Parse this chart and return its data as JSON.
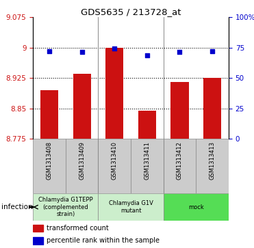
{
  "title": "GDS5635 / 213728_at",
  "samples": [
    "GSM1313408",
    "GSM1313409",
    "GSM1313410",
    "GSM1313411",
    "GSM1313412",
    "GSM1313413"
  ],
  "bar_values": [
    8.895,
    8.935,
    9.0,
    8.845,
    8.915,
    8.925
  ],
  "percentile_values": [
    8.992,
    8.99,
    8.998,
    8.982,
    8.99,
    8.992
  ],
  "bar_color": "#cc1111",
  "dot_color": "#0000cc",
  "ylim_left": [
    8.775,
    9.075
  ],
  "ylim_right": [
    0,
    100
  ],
  "yticks_left": [
    8.775,
    8.85,
    8.925,
    9.0,
    9.075
  ],
  "ytick_labels_left": [
    "8.775",
    "8.85",
    "8.925",
    "9",
    "9.075"
  ],
  "yticks_right": [
    0,
    25,
    50,
    75,
    100
  ],
  "ytick_labels_right": [
    "0",
    "25",
    "50",
    "75",
    "100%"
  ],
  "hlines": [
    8.85,
    8.925,
    9.0
  ],
  "group_labels": [
    "Chlamydia G1TEPP\n(complemented\nstrain)",
    "Chlamydia G1V\nmutant",
    "mock"
  ],
  "group_colors": [
    "#cceecc",
    "#cceecc",
    "#55dd55"
  ],
  "group_ranges": [
    [
      0,
      2
    ],
    [
      2,
      4
    ],
    [
      4,
      6
    ]
  ],
  "factor_label": "infection",
  "left_tick_color": "#cc1111",
  "right_tick_color": "#0000cc",
  "legend_bar_label": "transformed count",
  "legend_dot_label": "percentile rank within the sample",
  "bar_width": 0.55,
  "base_value": 8.775,
  "sample_box_color": "#cccccc",
  "sep_color": "#888888"
}
